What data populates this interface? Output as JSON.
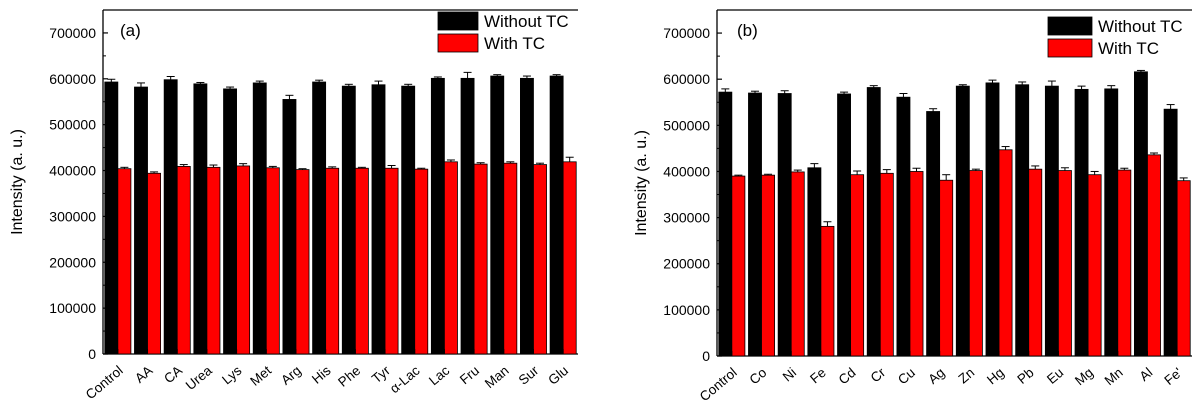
{
  "chart_data": [
    {
      "type": "bar",
      "panel_label": "(a)",
      "ylabel": "Intensity (a. u.)",
      "ylim": [
        0,
        750000
      ],
      "yticks": [
        0,
        100000,
        200000,
        300000,
        400000,
        500000,
        600000,
        700000
      ],
      "ytick_labels": [
        "0",
        "100000",
        "200000",
        "300000",
        "400000",
        "500000",
        "600000",
        "700000"
      ],
      "legend_position": "top-right",
      "categories": [
        "Control",
        "AA",
        "CA",
        "Urea",
        "Lys",
        "Met",
        "Arg",
        "His",
        "Phe",
        "Tyr",
        "α-Lac",
        "Lac",
        "Fru",
        "Man",
        "Sur",
        "Glu"
      ],
      "series": [
        {
          "name": "Without TC",
          "color": "#000000",
          "values": [
            593000,
            582000,
            598000,
            589000,
            578000,
            591000,
            555000,
            593000,
            584000,
            587000,
            584000,
            601000,
            601000,
            606000,
            601000,
            606000
          ],
          "errors": [
            6000,
            9000,
            7000,
            3000,
            4000,
            4000,
            9000,
            4000,
            4000,
            8000,
            4000,
            3000,
            13000,
            3000,
            5000,
            3000
          ]
        },
        {
          "name": "With TC",
          "color": "#ff0000",
          "values": [
            404000,
            394000,
            409000,
            407000,
            410000,
            406000,
            402000,
            405000,
            405000,
            405000,
            403000,
            419000,
            414000,
            416000,
            413000,
            419000
          ],
          "errors": [
            3000,
            3000,
            4000,
            5000,
            5000,
            3000,
            2000,
            3000,
            2000,
            6000,
            2000,
            4000,
            3000,
            3000,
            3000,
            10000
          ]
        }
      ]
    },
    {
      "type": "bar",
      "panel_label": "(b)",
      "ylabel": "Intensity (a. u.)",
      "ylim": [
        0,
        750000
      ],
      "yticks": [
        0,
        100000,
        200000,
        300000,
        400000,
        500000,
        600000,
        700000
      ],
      "ytick_labels": [
        "0",
        "100000",
        "200000",
        "300000",
        "400000",
        "500000",
        "600000",
        "700000"
      ],
      "legend_position": "top-right",
      "categories": [
        "Control",
        "Co",
        "Ni",
        "Fe",
        "Cd",
        "Cr",
        "Cu",
        "Ag",
        "Zn",
        "Hg",
        "Pb",
        "Eu",
        "Mg",
        "Mn",
        "Al",
        "Fe'"
      ],
      "series": [
        {
          "name": "Without TC",
          "color": "#000000",
          "values": [
            572000,
            570000,
            569000,
            408000,
            568000,
            582000,
            561000,
            530000,
            585000,
            592000,
            588000,
            585000,
            578000,
            579000,
            616000,
            535000
          ],
          "errors": [
            7000,
            4000,
            6000,
            9000,
            4000,
            4000,
            8000,
            6000,
            3000,
            6000,
            6000,
            11000,
            7000,
            7000,
            3000,
            10000
          ]
        },
        {
          "name": "With TC",
          "color": "#ff0000",
          "values": [
            390000,
            392000,
            399000,
            281000,
            393000,
            396000,
            400000,
            381000,
            402000,
            447000,
            405000,
            402000,
            393000,
            403000,
            436000,
            380000
          ],
          "errors": [
            2000,
            2000,
            4000,
            10000,
            8000,
            8000,
            7000,
            12000,
            3000,
            7000,
            7000,
            6000,
            7000,
            4000,
            4000,
            6000
          ]
        }
      ]
    }
  ]
}
